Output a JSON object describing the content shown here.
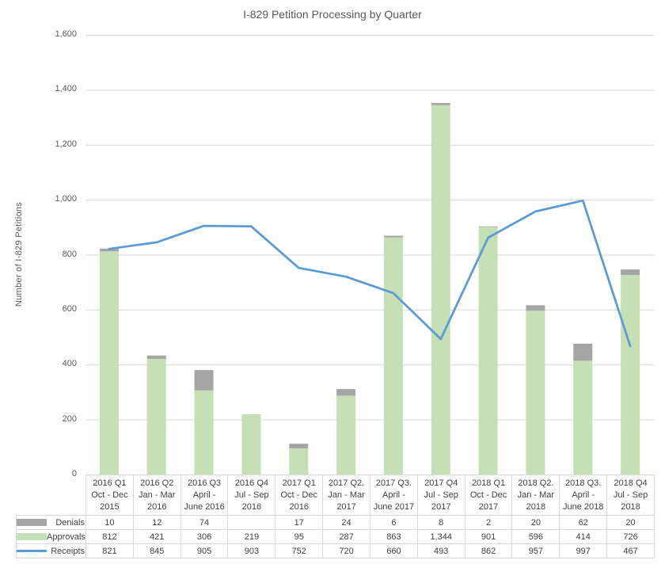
{
  "title": "I-829 Petition Processing by Quarter",
  "y_axis": {
    "label": "Number of I-829 Petitions",
    "tick_labels": [
      "0",
      "200",
      "400",
      "600",
      "800",
      "1,000",
      "1,200",
      "1,400",
      "1,600"
    ],
    "tick_values": [
      0,
      200,
      400,
      600,
      800,
      1000,
      1200,
      1400,
      1600
    ]
  },
  "chart_data": {
    "type": "bar",
    "subtype": "stacked-bars-with-line-overlay",
    "title": "I-829 Petition Processing by Quarter",
    "xlabel": "",
    "ylabel": "Number of I-829 Petitions",
    "ylim": [
      0,
      1600
    ],
    "grid": "horizontal-only",
    "legend_position": "data-table-left",
    "categories": [
      "2016 Q1 Oct - Dec 2015",
      "2016 Q2 Jan - Mar 2016",
      "2016 Q3 April - June 2016",
      "2016 Q4 Jul - Sep 2016",
      "2017 Q1 Oct - Dec 2016",
      "2017 Q2. Jan - Mar 2017",
      "2017 Q3. April - June 2017",
      "2017 Q4 Jul - Sep 2017",
      "2018 Q1 Oct - Dec 2017",
      "2018 Q2. Jan - Mar 2018",
      "2018 Q3. April - June 2018",
      "2018 Q4 Jul - Sep 2018"
    ],
    "category_label_lines": [
      [
        "2016 Q1",
        "Oct - Dec",
        "2015"
      ],
      [
        "2016 Q2",
        "Jan - Mar",
        "2016"
      ],
      [
        "2016 Q3",
        "April -",
        "June 2016"
      ],
      [
        "2016 Q4",
        "Jul - Sep",
        "2016"
      ],
      [
        "2017 Q1",
        "Oct - Dec",
        "2016"
      ],
      [
        "2017 Q2.",
        "Jan - Mar",
        "2017"
      ],
      [
        "2017 Q3.",
        "April -",
        "June 2017"
      ],
      [
        "2017 Q4",
        "Jul - Sep",
        "2017"
      ],
      [
        "2018 Q1",
        "Oct - Dec",
        "2017"
      ],
      [
        "2018 Q2.",
        "Jan - Mar",
        "2018"
      ],
      [
        "2018 Q3.",
        "April -",
        "June 2018"
      ],
      [
        "2018 Q4",
        "Jul - Sep",
        "2018"
      ]
    ],
    "series": [
      {
        "name": "Denials",
        "render": "bar",
        "color": "#A5A5A5",
        "values": [
          10,
          12,
          74,
          null,
          17,
          24,
          6,
          8,
          2,
          20,
          62,
          20
        ],
        "display": [
          "10",
          "12",
          "74",
          "",
          "17",
          "24",
          "6",
          "8",
          "2",
          "20",
          "62",
          "20"
        ]
      },
      {
        "name": "Approvals",
        "render": "bar",
        "color": "#C5E0B4",
        "values": [
          812,
          421,
          306,
          219,
          95,
          287,
          863,
          1344,
          901,
          596,
          414,
          726
        ],
        "display": [
          "812",
          "421",
          "306",
          "219",
          "95",
          "287",
          "863",
          "1,344",
          "901",
          "596",
          "414",
          "726"
        ]
      },
      {
        "name": "Receipts",
        "render": "line",
        "color": "#5B9BD5",
        "values": [
          821,
          845,
          905,
          903,
          752,
          720,
          660,
          493,
          862,
          957,
          997,
          467
        ],
        "display": [
          "821",
          "845",
          "905",
          "903",
          "752",
          "720",
          "660",
          "493",
          "862",
          "957",
          "997",
          "467"
        ]
      }
    ],
    "stack_order_bottom_to_top": [
      "Approvals",
      "Denials"
    ]
  },
  "colors": {
    "gridline": "#D9D9D9",
    "axis_text": "#595959",
    "table_border": "#D9D9D9",
    "table_text": "#404040"
  }
}
